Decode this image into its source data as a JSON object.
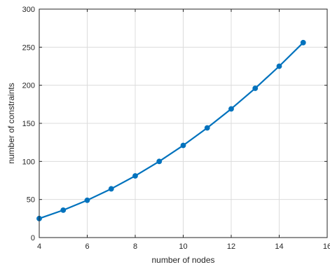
{
  "chart_data": {
    "type": "line",
    "title": "",
    "xlabel": "number of nodes",
    "ylabel": "number of constraints",
    "xlim": [
      4,
      16
    ],
    "ylim": [
      0,
      300
    ],
    "xticks": [
      "4",
      "6",
      "8",
      "10",
      "12",
      "14",
      "16"
    ],
    "yticks": [
      "0",
      "50",
      "100",
      "150",
      "200",
      "250",
      "300"
    ],
    "grid": true,
    "legend": "none",
    "series": [
      {
        "color": "#0072BD",
        "marker": "circle",
        "x": [
          4,
          5,
          6,
          7,
          8,
          9,
          10,
          11,
          12,
          13,
          14,
          15
        ],
        "y": [
          25,
          36,
          49,
          64,
          81,
          100,
          121,
          144,
          169,
          196,
          225,
          256
        ]
      }
    ]
  }
}
